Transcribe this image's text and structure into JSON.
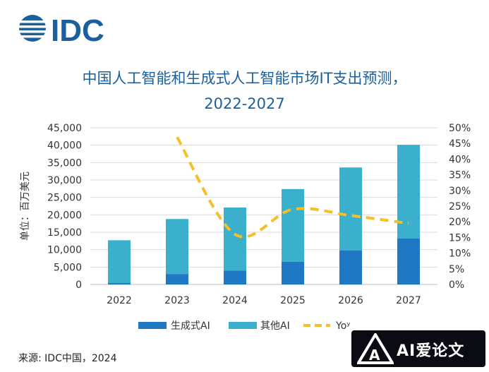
{
  "logo": {
    "text": "IDC"
  },
  "title_line1": "中国人工智能和生成式人工智能市场IT支出预测，",
  "title_line2": "2022-2027",
  "source": "来源: IDC中国，2024",
  "watermark": {
    "text": "AI爱论文"
  },
  "colors": {
    "genai": "#1f78c4",
    "other_ai": "#3bb0cc",
    "yoy": "#f5bf2a",
    "title": "#1a5f9e",
    "grid": "#d9d9d9"
  },
  "chart_data": {
    "type": "bar",
    "stacked": true,
    "categories": [
      "2022",
      "2023",
      "2024",
      "2025",
      "2026",
      "2027"
    ],
    "series": [
      {
        "name": "生成式AI",
        "values": [
          400,
          3000,
          4000,
          6500,
          9800,
          13200
        ]
      },
      {
        "name": "其他AI",
        "values": [
          12300,
          15800,
          18100,
          20900,
          23800,
          26900
        ]
      }
    ],
    "line_series": {
      "name": "Yoʸ",
      "values": [
        null,
        47,
        16,
        24,
        22,
        19.5
      ]
    },
    "ylabel": "单位：百万美元",
    "ylim": [
      0,
      45000
    ],
    "yticks": [
      "45,000",
      "40,000",
      "35,000",
      "30,000",
      "25,000",
      "20,000",
      "15,000",
      "10,000",
      "5,000",
      "0"
    ],
    "y2lim": [
      0,
      50
    ],
    "y2ticks": [
      "50%",
      "45%",
      "40%",
      "35%",
      "30%",
      "25%",
      "20%",
      "15%",
      "10%",
      "5%",
      "0%"
    ],
    "legend_position": "bottom",
    "grid": true
  }
}
